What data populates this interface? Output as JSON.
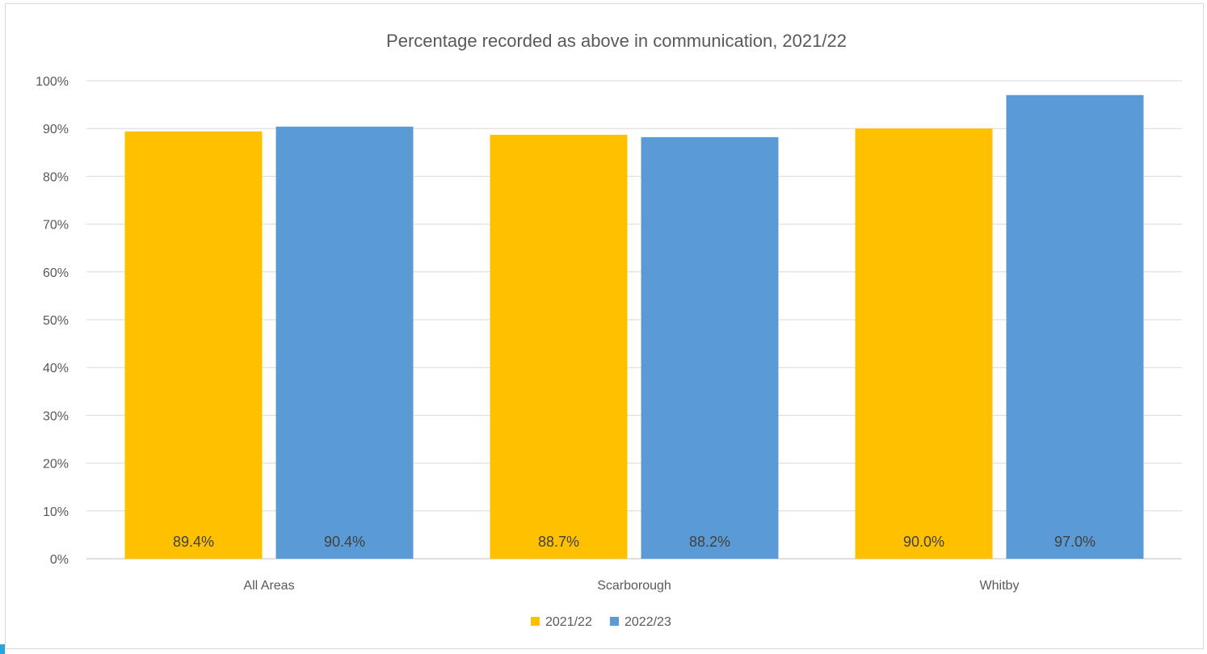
{
  "chart_data": {
    "type": "bar",
    "title": "Percentage recorded as above in communication, 2021/22",
    "categories": [
      "All Areas",
      "Scarborough",
      "Whitby"
    ],
    "series": [
      {
        "name": "2021/22",
        "color": "#ffc000",
        "values": [
          89.4,
          88.7,
          90.0
        ],
        "labels": [
          "89.4%",
          "88.7%",
          "90.0%"
        ]
      },
      {
        "name": "2022/23",
        "color": "#5b9bd5",
        "values": [
          90.4,
          88.2,
          97.0
        ],
        "labels": [
          "90.4%",
          "88.2%",
          "97.0%"
        ]
      }
    ],
    "ylim": [
      0,
      100
    ],
    "yticks": [
      0,
      10,
      20,
      30,
      40,
      50,
      60,
      70,
      80,
      90,
      100
    ],
    "ytick_labels": [
      "0%",
      "10%",
      "20%",
      "30%",
      "40%",
      "50%",
      "60%",
      "70%",
      "80%",
      "90%",
      "100%"
    ],
    "grid": true,
    "legend": "bottom",
    "data_label_position": "inside-base"
  }
}
